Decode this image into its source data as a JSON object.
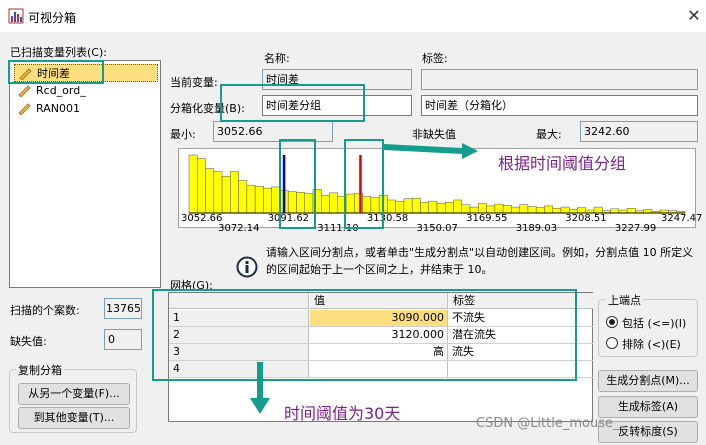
{
  "window": {
    "title": "可视分箱",
    "close_glyph": "✕"
  },
  "variable_list": {
    "label": "已扫描变量列表(C):",
    "items": [
      {
        "label": "时间差",
        "selected": true
      },
      {
        "label": "Rcd_ord_",
        "selected": false
      },
      {
        "label": "RAN001",
        "selected": false
      }
    ]
  },
  "columns": {
    "name_header": "名称:",
    "label_header": "标签:"
  },
  "current_variable": {
    "label": "当前变量:",
    "name": "时间差",
    "var_label": ""
  },
  "binned_variable": {
    "label": "分箱化变量(B):",
    "name": "时间差分组",
    "var_label": "时间差（分箱化）"
  },
  "stats": {
    "min_label": "最小:",
    "min_value": "3052.66",
    "nonmissing_label": "非缺失值",
    "max_label": "最大:",
    "max_value": "3242.60"
  },
  "histogram": {
    "bar_color": "#ffff00",
    "x_min": 3052.66,
    "x_max": 3247.47,
    "values": [
      98,
      92,
      75,
      70,
      62,
      70,
      55,
      47,
      45,
      42,
      44,
      38,
      36,
      35,
      33,
      40,
      30,
      34,
      28,
      32,
      33,
      28,
      26,
      30,
      22,
      20,
      24,
      25,
      18,
      20,
      16,
      18,
      22,
      14,
      10,
      16,
      12,
      15,
      13,
      10,
      14,
      11,
      9,
      12,
      8,
      10,
      6,
      9,
      5,
      10,
      4,
      7,
      5,
      8,
      4,
      6,
      3,
      5,
      4,
      3
    ],
    "tick_labels_top": [
      "3052.66",
      "3091.62",
      "3130.58",
      "3169.55",
      "3208.51",
      "3247.47"
    ],
    "tick_labels_bottom": [
      "3072.14",
      "3111.10",
      "3150.07",
      "3189.03",
      "3227.99"
    ],
    "cut_points": [
      {
        "value": 3090,
        "color": "#0000cc"
      },
      {
        "value": 3120,
        "color": "#e00000"
      }
    ]
  },
  "info": {
    "text": "请输入区间分割点，或者单击\"生成分割点\"以自动创建区间。例如，分割点值 10 所定义的区间起始于上一个区间之上，并结束于 10。"
  },
  "grid": {
    "label": "网格(G):",
    "headers": [
      "值",
      "标签"
    ],
    "rows": [
      {
        "num": "1",
        "value": "3090.000",
        "label": "不流失"
      },
      {
        "num": "2",
        "value": "3120.000",
        "label": "潜在流失"
      },
      {
        "num": "3",
        "value": "高",
        "label": "流失"
      },
      {
        "num": "4",
        "value": "",
        "label": ""
      }
    ]
  },
  "case_stats": {
    "scanned_label": "扫描的个案数:",
    "scanned_value": "13765",
    "missing_label": "缺失值:",
    "missing_value": "0"
  },
  "copy_bins": {
    "title": "复制分箱",
    "from_button": "从另一个变量(F)...",
    "to_button": "到其他变量(T)..."
  },
  "upper_endpoint": {
    "title": "上端点",
    "options": [
      {
        "label": "包括 (<=)(I)",
        "selected": true
      },
      {
        "label": "排除 (<)(E)",
        "selected": false
      }
    ]
  },
  "buttons": {
    "make_cutpoints": "生成分割点(M)...",
    "make_labels": "生成标签(A)",
    "reverse_scale": "反转标度(S)"
  },
  "annotations": {
    "threshold_group": "根据时间阈值分组",
    "threshold_30": "时间阈值为30天"
  },
  "watermark": "CSDN @Little_mouse_"
}
